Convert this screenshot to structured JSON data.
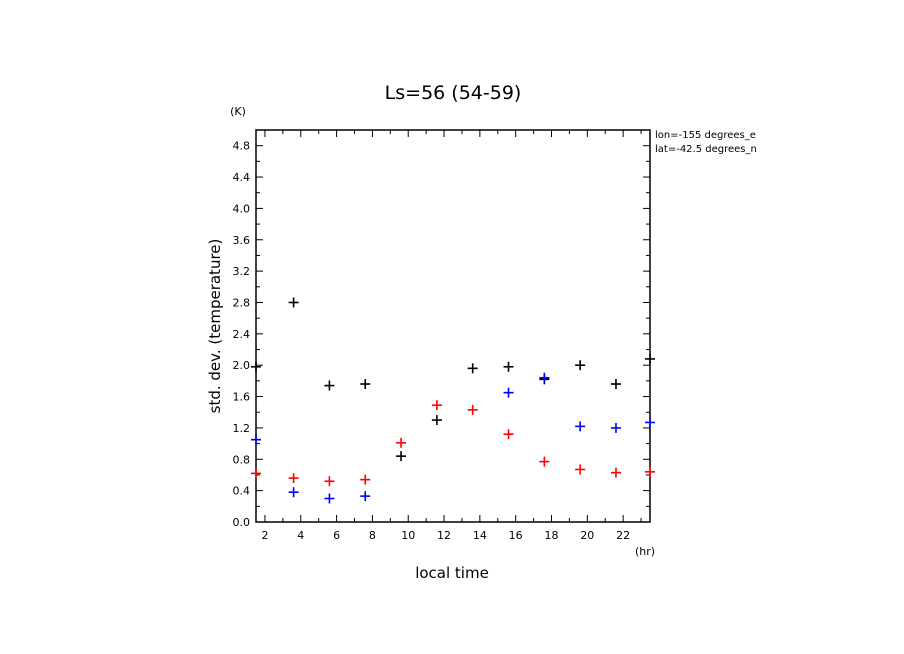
{
  "chart_data": {
    "type": "scatter",
    "title": "Ls=56 (54-59)",
    "xlabel": "local time",
    "x_unit": "(hr)",
    "ylabel": "std. dev. (temperature)",
    "y_unit": "(K)",
    "xlim": [
      1.5,
      23.5
    ],
    "ylim": [
      0.0,
      5.0
    ],
    "x_ticks": [
      "2",
      "4",
      "6",
      "8",
      "10",
      "12",
      "14",
      "16",
      "18",
      "20",
      "22"
    ],
    "y_ticks": [
      "0.0",
      "0.4",
      "0.8",
      "1.2",
      "1.6",
      "2.0",
      "2.4",
      "2.8",
      "3.2",
      "3.6",
      "4.0",
      "4.4",
      "4.8"
    ],
    "annotations": [
      "lon=-155 degrees_e",
      "lat=-42.5 degrees_n"
    ],
    "series": [
      {
        "color": "#000000",
        "points": [
          [
            1.5,
            1.98
          ],
          [
            3.6,
            2.8
          ],
          [
            5.6,
            1.74
          ],
          [
            7.6,
            1.76
          ],
          [
            9.6,
            0.84
          ],
          [
            11.6,
            1.3
          ],
          [
            13.6,
            1.96
          ],
          [
            15.6,
            1.98
          ],
          [
            17.6,
            1.82
          ],
          [
            19.6,
            2.0
          ],
          [
            21.6,
            1.76
          ],
          [
            23.5,
            2.08
          ]
        ]
      },
      {
        "color": "#ff0000",
        "points": [
          [
            1.5,
            0.62
          ],
          [
            3.6,
            0.56
          ],
          [
            5.6,
            0.52
          ],
          [
            7.6,
            0.54
          ],
          [
            9.6,
            1.01
          ],
          [
            11.6,
            1.49
          ],
          [
            13.6,
            1.43
          ],
          [
            15.6,
            1.12
          ],
          [
            17.6,
            0.77
          ],
          [
            19.6,
            0.67
          ],
          [
            21.6,
            0.63
          ],
          [
            23.5,
            0.64
          ]
        ]
      },
      {
        "color": "#0000ff",
        "points": [
          [
            1.5,
            1.05
          ],
          [
            3.6,
            0.38
          ],
          [
            5.6,
            0.3
          ],
          [
            7.6,
            0.33
          ],
          [
            15.6,
            1.65
          ],
          [
            17.6,
            1.84
          ],
          [
            19.6,
            1.22
          ],
          [
            21.6,
            1.2
          ],
          [
            23.5,
            1.27
          ]
        ]
      }
    ]
  }
}
